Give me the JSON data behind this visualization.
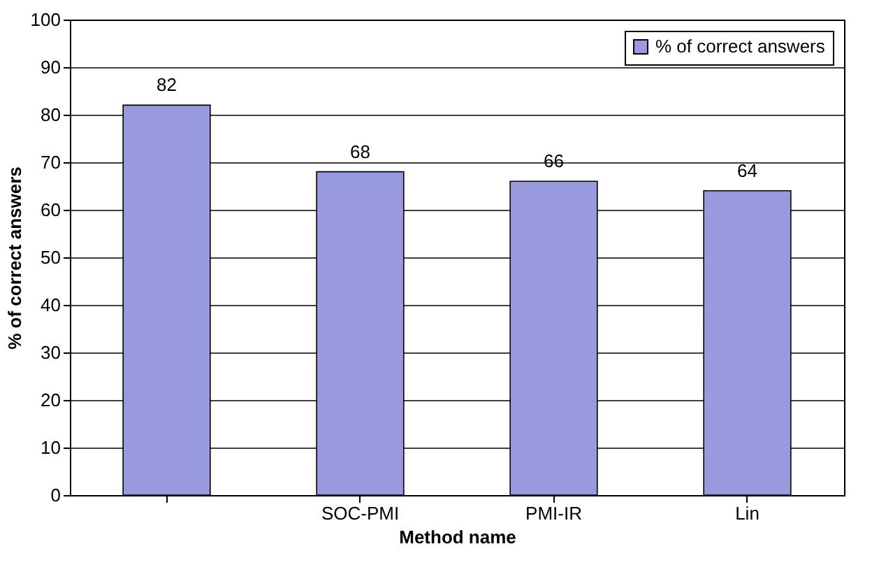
{
  "chart_data": {
    "type": "bar",
    "xlabel": "Method name",
    "ylabel": "% of correct answers",
    "categories": [
      null,
      "SOC-PMI",
      "PMI-IR",
      "Lin"
    ],
    "series": [
      {
        "name": "% of correct answers",
        "color": "#9999dd",
        "values": [
          82,
          68,
          66,
          64
        ]
      }
    ],
    "ylim": [
      0,
      100
    ],
    "yticks": [
      0,
      10,
      20,
      30,
      40,
      50,
      60,
      70,
      80,
      90,
      100
    ],
    "grid": "y",
    "legend": "top right",
    "data_labels": true
  }
}
